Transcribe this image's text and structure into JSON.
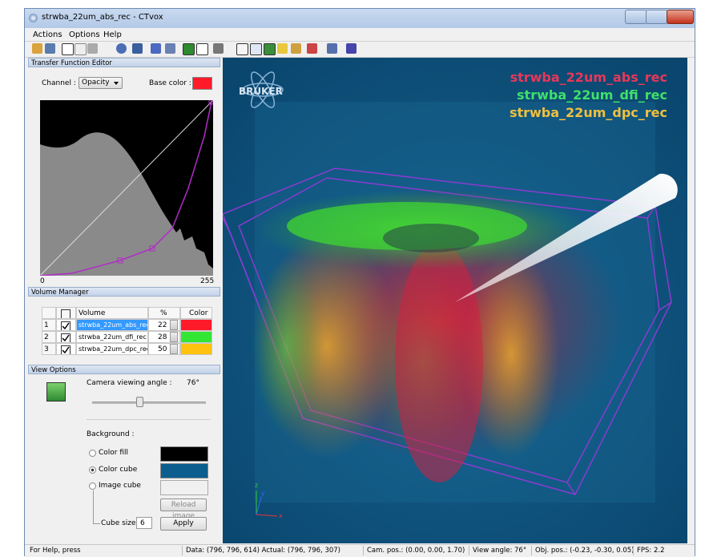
{
  "window": {
    "title": "strwba_22um_abs_rec - CTvox"
  },
  "menu": [
    "Actions",
    "Options",
    "Help"
  ],
  "transfer_function_editor": {
    "title": "Transfer Function Editor",
    "channel_label": "Channel :",
    "channel_value": "Opacity",
    "base_color_label": "Base color :",
    "axis_min": "0",
    "axis_max": "255"
  },
  "volume_manager": {
    "title": "Volume Manager",
    "headers": [
      "Volume",
      "%",
      "Color"
    ],
    "rows": [
      [
        "1",
        "strwba_22um_abs_rec",
        "22"
      ],
      [
        "2",
        "strwba_22um_dfi_rec",
        "28"
      ],
      [
        "3",
        "strwba_22um_dpc_rec",
        "50"
      ]
    ]
  },
  "view_options": {
    "title": "View Options",
    "camera_label": "Camera viewing angle :",
    "camera_value": "76°",
    "background_label": "Background :",
    "options": [
      "Color fill",
      "Color cube",
      "Image cube"
    ],
    "reload_button": "Reload image",
    "cube_size_label": "Cube size",
    "cube_size_value": "6",
    "apply_button": "Apply"
  },
  "viewport": {
    "logo": "BRUKER",
    "legend": [
      "strwba_22um_abs_rec",
      "strwba_22um_dfi_rec",
      "strwba_22um_dpc_rec"
    ],
    "axes": [
      "z",
      "y",
      "x"
    ]
  },
  "status_bar": [
    "For Help, press",
    "Data: (796, 796, 614)  Actual: (796, 796, 307)",
    "Cam. pos.: (0.00, 0.00, 1.70)",
    "View angle: 76°",
    "Obj. pos.: (-0.23, -0.30, 0.05)",
    "FPS: 2.2"
  ]
}
